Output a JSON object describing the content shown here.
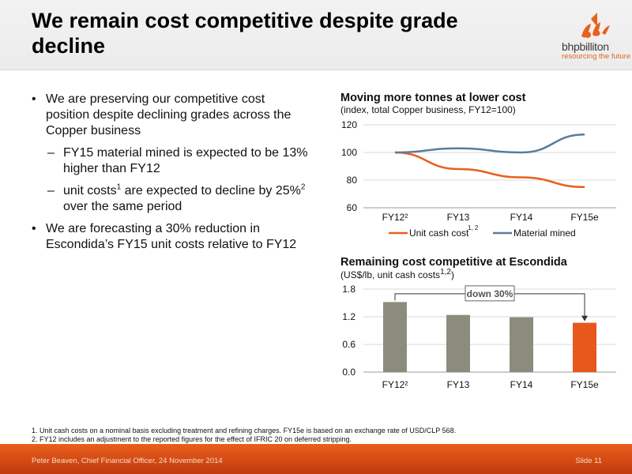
{
  "header": {
    "title_line1": "We remain cost competitive despite grade",
    "title_line2": "decline",
    "logo_name": "bhpbilliton",
    "logo_tagline": "resourcing the future"
  },
  "bullets": {
    "b1": "We are preserving our competitive cost position despite declining grades across the Copper business",
    "s1": "FY15 material mined is expected to be 13% higher than FY12",
    "s2_pre": "unit costs",
    "s2_sup1": "1",
    "s2_mid": " are expected to decline by 25%",
    "s2_sup2": "2",
    "s2_post": "  over the same period",
    "b2": "We are forecasting a 30% reduction in Escondida’s FY15 unit costs relative to FY12",
    "dash": "–"
  },
  "chart1": {
    "title": "Moving more tonnes at lower cost",
    "subtitle": "(index, total Copper business, FY12=100)",
    "legend_cost": "Unit cash cost",
    "legend_cost_sup": "1, 2",
    "legend_mined": "Material mined"
  },
  "chart2": {
    "title": "Remaining cost competitive at Escondida",
    "subtitle_pre": "(US$/lb, unit cash costs",
    "subtitle_sup": "1,2",
    "subtitle_post": ")",
    "annotation": "down 30%"
  },
  "chart_data": [
    {
      "type": "line",
      "title": "Moving more tonnes at lower cost",
      "subtitle": "(index, total Copper business, FY12=100)",
      "categories": [
        "FY12²",
        "FY13",
        "FY14",
        "FY15e"
      ],
      "ylim": [
        60,
        120
      ],
      "yticks": [
        60,
        80,
        100,
        120
      ],
      "series": [
        {
          "name": "Unit cash cost",
          "color": "#e8601c",
          "values": [
            100,
            88,
            82,
            75
          ]
        },
        {
          "name": "Material mined",
          "color": "#5a7d99",
          "values": [
            100,
            103,
            100,
            113
          ]
        }
      ],
      "legend": "bottom"
    },
    {
      "type": "bar",
      "title": "Remaining cost competitive at Escondida",
      "subtitle": "(US$/lb, unit cash costs1,2)",
      "categories": [
        "FY12²",
        "FY13",
        "FY14",
        "FY15e"
      ],
      "values": [
        1.52,
        1.24,
        1.19,
        1.07
      ],
      "colors": [
        "#8c8c7e",
        "#8c8c7e",
        "#8c8c7e",
        "#e8571b"
      ],
      "ylim": [
        0,
        1.8
      ],
      "yticks": [
        "0.0",
        "0.6",
        "1.2",
        "1.8"
      ],
      "annotation": "down 30%"
    }
  ],
  "footnotes": {
    "n1": "1.  Unit cash costs on a nominal basis excluding treatment and refining charges. FY15e is based on an exchange rate of USD/CLP 568.",
    "n2": "2.  FY12 includes an adjustment to the reported figures for the effect of IFRIC 20 on deferred stripping."
  },
  "footer": {
    "left": "Peter Beaven, Chief Financial Officer, 24 November 2014",
    "right": "Slide 11"
  }
}
